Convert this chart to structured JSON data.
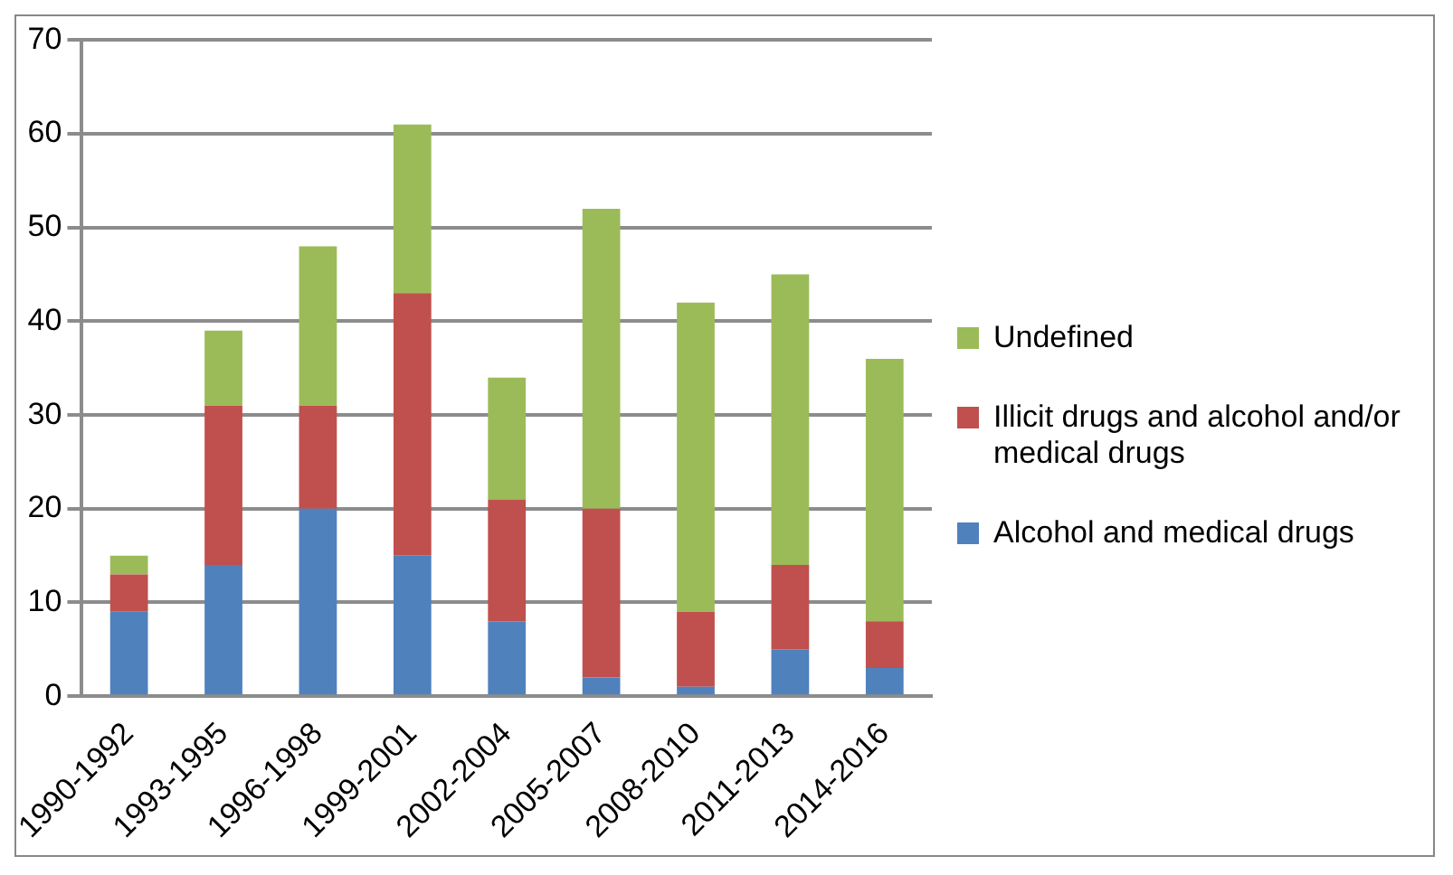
{
  "chart_data": {
    "type": "bar",
    "stacked": true,
    "categories": [
      "1990-1992",
      "1993-1995",
      "1996-1998",
      "1999-2001",
      "2002-2004",
      "2005-2007",
      "2008-2010",
      "2011-2013",
      "2014-2016"
    ],
    "series": [
      {
        "name": "Alcohol and medical drugs",
        "color": "#4f81bd",
        "values": [
          9,
          14,
          20,
          15,
          8,
          2,
          1,
          5,
          3
        ]
      },
      {
        "name": "Illicit drugs and alcohol and/or medical drugs",
        "color": "#c0504d",
        "values": [
          4,
          17,
          11,
          28,
          13,
          18,
          8,
          9,
          5
        ]
      },
      {
        "name": "Undefined",
        "color": "#9bbb59",
        "values": [
          2,
          8,
          17,
          18,
          13,
          32,
          33,
          31,
          28
        ]
      }
    ],
    "ylim": [
      0,
      70
    ],
    "yticks": [
      0,
      10,
      20,
      30,
      40,
      50,
      60,
      70
    ],
    "grid": "y",
    "legend": "right"
  }
}
